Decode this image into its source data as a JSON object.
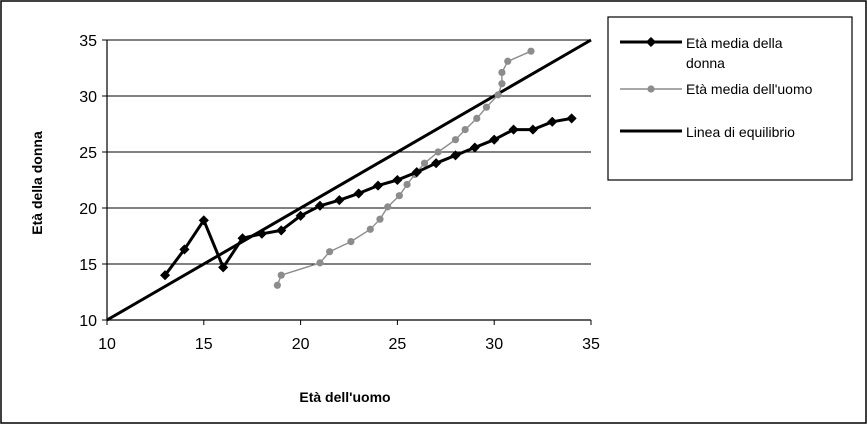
{
  "chart_data": {
    "type": "line",
    "xlabel": "Età dell'uomo",
    "ylabel": "Età della donna",
    "xlim": [
      10,
      35
    ],
    "ylim": [
      10,
      35
    ],
    "x_ticks": [
      10,
      15,
      20,
      25,
      30,
      35
    ],
    "y_ticks": [
      10,
      15,
      20,
      25,
      30,
      35
    ],
    "grid": "horizontal",
    "legend_position": "top-right",
    "series": [
      {
        "name_lines": [
          "Età media della",
          "donna"
        ],
        "color": "#000000",
        "marker": "diamond",
        "points": [
          [
            13,
            14
          ],
          [
            14,
            16.3
          ],
          [
            15,
            18.9
          ],
          [
            16,
            14.7
          ],
          [
            17,
            17.3
          ],
          [
            18,
            17.7
          ],
          [
            19,
            18
          ],
          [
            20,
            19.3
          ],
          [
            21,
            20.2
          ],
          [
            22,
            20.7
          ],
          [
            23,
            21.3
          ],
          [
            24,
            22
          ],
          [
            25,
            22.5
          ],
          [
            26,
            23.2
          ],
          [
            27,
            24
          ],
          [
            28,
            24.7
          ],
          [
            29,
            25.4
          ],
          [
            30,
            26.1
          ],
          [
            31,
            27
          ],
          [
            32,
            27
          ],
          [
            33,
            27.7
          ],
          [
            34,
            28
          ]
        ]
      },
      {
        "name_lines": [
          "Età media dell'uomo"
        ],
        "color": "#8c8c8c",
        "marker": "circle",
        "points": [
          [
            18.8,
            13.1
          ],
          [
            19,
            14
          ],
          [
            21,
            15.1
          ],
          [
            21.5,
            16.1
          ],
          [
            22.6,
            17
          ],
          [
            23.6,
            18.1
          ],
          [
            24.1,
            19
          ],
          [
            24.5,
            20.1
          ],
          [
            25.1,
            21.1
          ],
          [
            25.5,
            22.1
          ],
          [
            25.9,
            23
          ],
          [
            26.4,
            24
          ],
          [
            27.1,
            25
          ],
          [
            28,
            26.1
          ],
          [
            28.5,
            27
          ],
          [
            29.1,
            28
          ],
          [
            29.6,
            29
          ],
          [
            30.2,
            30.1
          ],
          [
            30.4,
            31.1
          ],
          [
            30.4,
            32.1
          ],
          [
            30.7,
            33.1
          ],
          [
            31.9,
            34
          ]
        ]
      },
      {
        "name_lines": [
          "Linea di equilibrio"
        ],
        "color": "#000000",
        "marker": "none",
        "points": [
          [
            10,
            10
          ],
          [
            35,
            35
          ]
        ]
      }
    ]
  }
}
